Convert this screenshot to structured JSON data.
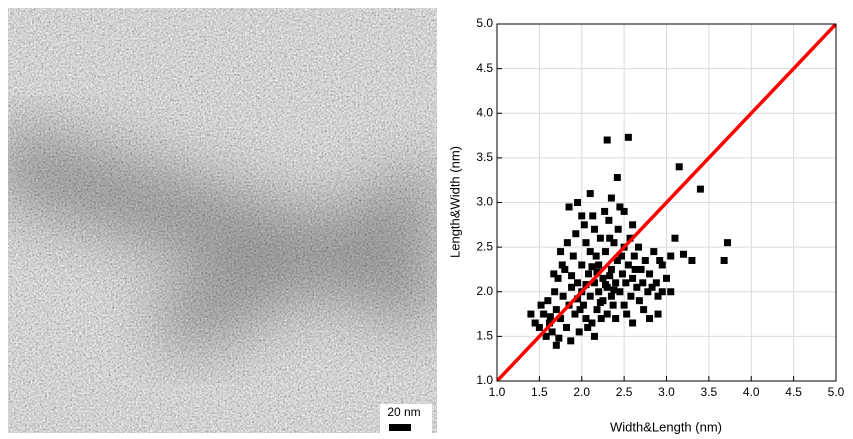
{
  "image": {
    "scale_bar_label": "20 nm"
  },
  "chart_data": {
    "type": "scatter",
    "xlabel": "Width&Length (nm)",
    "ylabel": "Length&Width (nm)",
    "xlim": [
      1,
      5
    ],
    "ylim": [
      1,
      5
    ],
    "xticks": [
      {
        "value": 1,
        "label": "1.0"
      },
      1.5,
      {
        "value": 2,
        "label": "2.0"
      },
      2.5,
      {
        "value": 3,
        "label": "3.0"
      },
      3.5,
      {
        "value": 4,
        "label": "4.0"
      },
      4.5,
      {
        "value": 5,
        "label": "5.0"
      }
    ],
    "yticks": [
      {
        "value": 1,
        "label": "1.0"
      },
      1.5,
      {
        "value": 2,
        "label": "2.0"
      },
      2.5,
      {
        "value": 3,
        "label": "3.0"
      },
      3.5,
      {
        "value": 4,
        "label": "4.0"
      },
      4.5,
      {
        "value": 5,
        "label": "5.0"
      }
    ],
    "grid": true,
    "series": [
      {
        "type": "scatter",
        "marker": "square",
        "color": "#000000",
        "x": [
          2.3,
          2.55,
          3.15,
          3.4,
          3.72,
          3.68,
          2.42,
          2.1,
          1.85,
          3.1,
          2.8,
          2.15,
          1.7,
          1.4,
          2.95,
          3.2,
          1.95,
          2.45,
          2.6,
          2.5,
          1.5,
          1.55,
          1.6,
          1.62,
          1.65,
          1.68,
          1.7,
          1.72,
          1.75,
          1.78,
          1.8,
          1.82,
          1.85,
          1.88,
          1.9,
          1.92,
          1.95,
          1.97,
          2.0,
          2.0,
          2.02,
          2.05,
          2.05,
          2.08,
          2.1,
          2.1,
          2.12,
          2.15,
          2.15,
          2.18,
          2.2,
          2.2,
          2.22,
          2.25,
          2.25,
          2.28,
          2.3,
          2.3,
          2.32,
          2.35,
          2.35,
          2.38,
          2.4,
          2.4,
          2.42,
          2.45,
          2.48,
          2.5,
          2.5,
          2.52,
          2.55,
          2.58,
          2.6,
          2.62,
          2.65,
          2.68,
          2.7,
          2.72,
          2.75,
          2.78,
          2.8,
          2.85,
          2.88,
          2.9,
          2.95,
          3.0,
          3.05,
          1.58,
          1.63,
          1.73,
          1.77,
          1.83,
          1.87,
          1.93,
          1.98,
          2.03,
          2.07,
          2.13,
          2.17,
          2.23,
          2.27,
          2.33,
          2.37,
          2.43,
          2.47,
          2.53,
          2.57,
          2.63,
          2.67,
          2.73,
          2.83,
          2.92,
          1.88,
          1.95,
          2.05,
          2.12,
          2.18,
          2.22,
          2.28,
          2.33,
          2.38,
          1.45,
          1.52,
          1.67,
          1.75,
          2.0,
          2.35,
          2.6,
          2.9,
          3.05,
          3.3
        ],
        "values": [
          3.7,
          3.73,
          3.4,
          3.15,
          2.55,
          2.35,
          3.28,
          3.1,
          2.95,
          2.6,
          1.7,
          1.5,
          1.4,
          1.75,
          2.0,
          2.42,
          3.0,
          2.95,
          2.75,
          2.9,
          1.6,
          1.75,
          1.9,
          1.65,
          1.55,
          2.0,
          1.8,
          2.15,
          1.7,
          1.95,
          2.25,
          1.6,
          1.85,
          2.05,
          2.4,
          1.75,
          2.1,
          1.55,
          2.0,
          2.3,
          1.85,
          2.55,
          1.7,
          2.2,
          1.95,
          2.45,
          1.65,
          2.1,
          2.7,
          1.8,
          2.3,
          2.0,
          2.6,
          1.9,
          2.15,
          2.45,
          1.75,
          2.05,
          2.8,
          2.25,
          1.95,
          2.55,
          2.1,
          1.7,
          2.35,
          2.0,
          2.2,
          1.85,
          2.5,
          2.1,
          2.3,
          1.95,
          2.15,
          2.4,
          2.05,
          1.9,
          2.25,
          2.1,
          2.35,
          2.0,
          2.2,
          2.45,
          2.1,
          1.95,
          2.3,
          2.15,
          2.4,
          1.5,
          1.72,
          1.48,
          2.3,
          2.55,
          1.45,
          2.65,
          1.8,
          2.75,
          1.6,
          2.85,
          2.4,
          1.7,
          2.9,
          2.6,
          1.85,
          2.7,
          2.4,
          1.75,
          2.6,
          2.25,
          2.5,
          1.8,
          2.05,
          2.35,
          2.18,
          1.92,
          2.08,
          2.28,
          2.22,
          1.88,
          2.08,
          2.18,
          2.02,
          1.65,
          1.85,
          2.2,
          2.45,
          2.85,
          3.05,
          1.65,
          1.75,
          2.0,
          2.35
        ]
      },
      {
        "type": "line",
        "color": "#ff0000",
        "x": [
          1,
          5
        ],
        "values": [
          1,
          5
        ]
      }
    ]
  }
}
